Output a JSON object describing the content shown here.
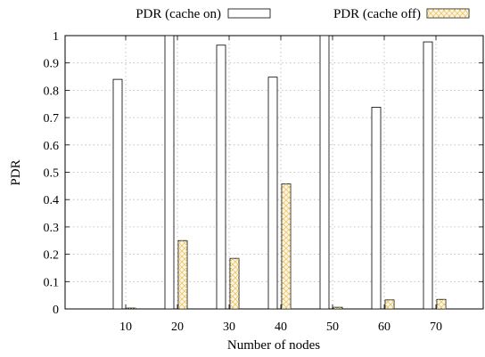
{
  "chart_data": {
    "type": "bar",
    "xlabel": "Number of nodes",
    "ylabel": "PDR",
    "categories": [
      "10",
      "20",
      "30",
      "40",
      "50",
      "60",
      "70"
    ],
    "ylim": [
      0,
      1
    ],
    "yticks": [
      0,
      0.1,
      0.2,
      0.3,
      0.4,
      0.5,
      0.6,
      0.7,
      0.8,
      0.9,
      1
    ],
    "ytick_labels": [
      "0",
      "0.1",
      "0.2",
      "0.3",
      "0.4",
      "0.5",
      "0.6",
      "0.7",
      "0.8",
      "0.9",
      "1"
    ],
    "grid": true,
    "legend_position": "top",
    "series": [
      {
        "name": "PDR (cache on)",
        "values": [
          0.84,
          1.0,
          0.965,
          0.848,
          1.0,
          0.738,
          0.977
        ],
        "fill": "#ffffff",
        "pattern": "none"
      },
      {
        "name": "PDR (cache off)",
        "values": [
          0.003,
          0.25,
          0.185,
          0.457,
          0.006,
          0.033,
          0.035
        ],
        "fill": "#fdf5e2",
        "pattern": "crosshatch",
        "hatch_color": "#e3bf5b"
      }
    ]
  }
}
